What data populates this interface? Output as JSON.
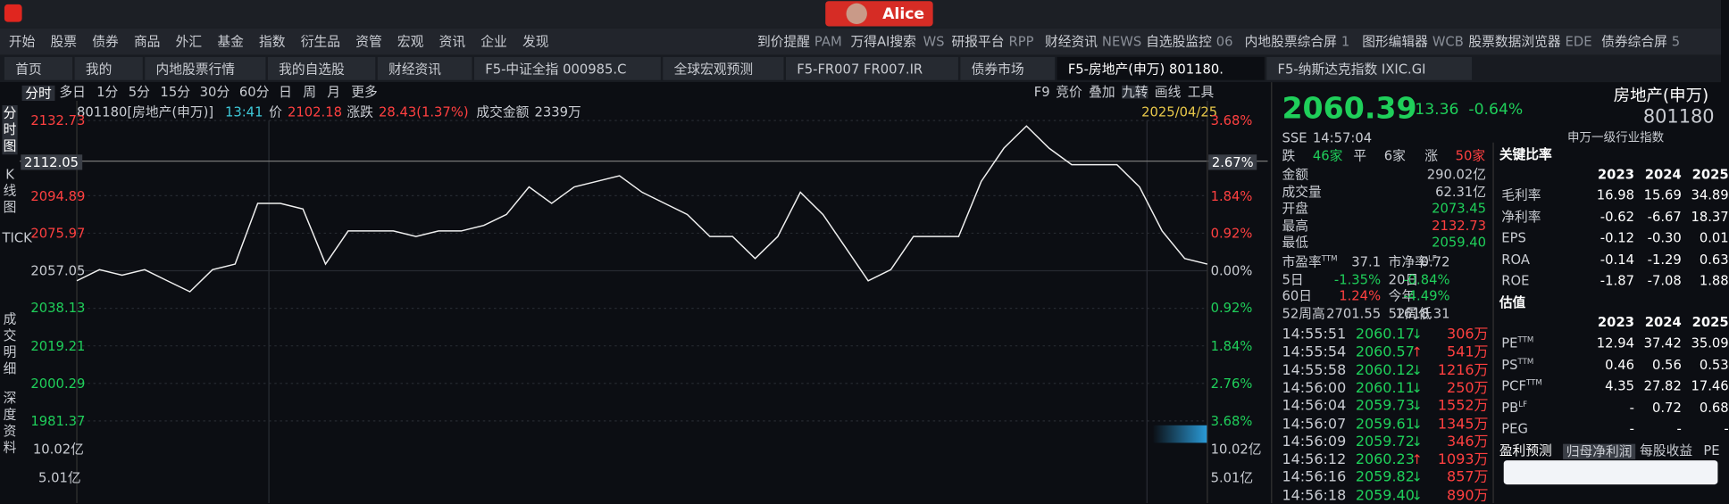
{
  "app": {
    "user": "Alice"
  },
  "menu": [
    "开始",
    "股票",
    "债券",
    "商品",
    "外汇",
    "基金",
    "指数",
    "衍生品",
    "资管",
    "宏观",
    "资讯",
    "企业",
    "发现"
  ],
  "shortcuts": [
    {
      "label": "到价提醒",
      "code": "PAM"
    },
    {
      "label": "万得AI搜索",
      "code": "WS"
    },
    {
      "label": "研报平台",
      "code": "RPP"
    },
    {
      "label": "财经资讯",
      "code": "NEWS"
    },
    {
      "label": "自选股监控",
      "code": "06"
    },
    {
      "label": "内地股票综合屏",
      "code": "1"
    },
    {
      "label": "图形编辑器",
      "code": "WCB"
    },
    {
      "label": "股票数据浏览器",
      "code": "EDE"
    },
    {
      "label": "债券综合屏",
      "code": "5"
    }
  ],
  "tabs": [
    "首页",
    "我的",
    "内地股票行情",
    "我的自选股",
    "财经资讯",
    "F5-中证全指 000985.C",
    "全球宏观预测",
    "F5-FR007 FR007.IR",
    "债券市场",
    "F5-房地产(申万) 801180.",
    "F5-纳斯达克指数 IXIC.GI"
  ],
  "chart": {
    "side_tabs": [
      "分时图",
      "K线图",
      "TICK",
      "成交明细",
      "深度资料"
    ],
    "periods": [
      "分时",
      "多日",
      "1分",
      "5分",
      "15分",
      "30分",
      "60分",
      "日",
      "周",
      "月",
      "更多"
    ],
    "tools": [
      "F9",
      "竞价",
      "叠加",
      "九转",
      "画线",
      "工具"
    ],
    "info": {
      "security": "801180[房地产(申万)]",
      "time": "13:41",
      "price_label": "价",
      "price": "2102.18",
      "change_label": "涨跌",
      "change": "28.43(1.37%)",
      "amount_label": "成交金额",
      "amount": "2339万",
      "date": "2025/04/25"
    },
    "y_labels": [
      2132.73,
      2094.89,
      2075.97,
      2057.05,
      2038.13,
      2019.21,
      2000.29,
      1981.37
    ],
    "pct_labels": [
      "3.68%",
      "1.84%",
      "0.92%",
      "0.00%",
      "0.92%",
      "1.84%",
      "2.76%",
      "3.68%"
    ],
    "crosshair": {
      "price": "2112.05",
      "pct": "2.67%"
    },
    "vol_labels": [
      "10.02亿",
      "5.01亿"
    ],
    "price_line": [
      2052.0,
      2057.6,
      2054.8,
      2057.6,
      2052.0,
      2046.5,
      2057.6,
      2060.4,
      2091.0,
      2091.0,
      2088.2,
      2060.4,
      2077.1,
      2077.1,
      2077.1,
      2074.3,
      2077.1,
      2077.1,
      2079.9,
      2085.4,
      2099.3,
      2091.0,
      2099.3,
      2102.1,
      2104.9,
      2096.6,
      2091.0,
      2085.4,
      2074.3,
      2074.3,
      2063.2,
      2074.3,
      2096.6,
      2085.4,
      2068.7,
      2052.0,
      2057.6,
      2074.3,
      2074.3,
      2074.3,
      2102.1,
      2118.8,
      2130.0,
      2118.8,
      2110.5,
      2110.5,
      2110.5,
      2099.3,
      2077.1,
      2063.2,
      2060.4
    ]
  },
  "quote": {
    "last": "2060.39",
    "change": "-13.36",
    "change_pct": "-0.64%",
    "name": "房地产(申万)",
    "code": "801180",
    "exchange": "SSE",
    "time": "14:57:04",
    "index_type": "申万一级行业指数",
    "breadth": [
      {
        "label": "跌",
        "value": "46家"
      },
      {
        "label": "平",
        "value": "6家"
      },
      {
        "label": "涨",
        "value": "50家"
      }
    ],
    "stats": [
      {
        "label": "金额",
        "value": "290.02亿"
      },
      {
        "label": "成交量",
        "value": "62.31亿"
      },
      {
        "label": "开盘",
        "value": "2073.45"
      },
      {
        "label": "最高",
        "value": "2132.73"
      },
      {
        "label": "最低",
        "value": "2059.40"
      }
    ],
    "pairs": [
      [
        {
          "label": "市盈率",
          "sup": "TTM",
          "value": "37.1"
        },
        {
          "label": "市净率",
          "sup": "LF",
          "value": "0.72"
        }
      ],
      [
        {
          "label": "5日",
          "value": "-1.35%"
        },
        {
          "label": "20日",
          "value": "-0.84%"
        }
      ],
      [
        {
          "label": "60日",
          "value": "1.24%"
        },
        {
          "label": "今年",
          "value": "-4.49%"
        }
      ],
      [
        {
          "label": "52周高",
          "value": "2701.55"
        },
        {
          "label": "52周低",
          "value": "1618.31"
        }
      ]
    ],
    "ticks": [
      {
        "time": "14:55:51",
        "price": "2060.17",
        "dir": "down",
        "vol": "306万"
      },
      {
        "time": "14:55:54",
        "price": "2060.57",
        "dir": "up",
        "vol": "541万"
      },
      {
        "time": "14:55:58",
        "price": "2060.12",
        "dir": "down",
        "vol": "1216万"
      },
      {
        "time": "14:56:00",
        "price": "2060.11",
        "dir": "down",
        "vol": "250万"
      },
      {
        "time": "14:56:04",
        "price": "2059.73",
        "dir": "down",
        "vol": "1552万"
      },
      {
        "time": "14:56:07",
        "price": "2059.61",
        "dir": "down",
        "vol": "1345万"
      },
      {
        "time": "14:56:09",
        "price": "2059.72",
        "dir": "down",
        "vol": "346万"
      },
      {
        "time": "14:56:12",
        "price": "2060.23",
        "dir": "up",
        "vol": "1093万"
      },
      {
        "time": "14:56:16",
        "price": "2059.82",
        "dir": "down",
        "vol": "857万"
      },
      {
        "time": "14:56:18",
        "price": "2059.40",
        "dir": "down",
        "vol": "890万"
      }
    ]
  },
  "key_ratios": {
    "title": "关键比率",
    "years": [
      "2023",
      "2024",
      "2025"
    ],
    "rows": [
      {
        "label": "毛利率",
        "values": [
          "16.98",
          "15.69",
          "34.89"
        ]
      },
      {
        "label": "净利率",
        "values": [
          "-0.62",
          "-6.67",
          "18.37"
        ]
      },
      {
        "label": "EPS",
        "values": [
          "-0.12",
          "-0.30",
          "0.01"
        ]
      },
      {
        "label": "ROA",
        "values": [
          "-0.14",
          "-1.29",
          "0.63"
        ]
      },
      {
        "label": "ROE",
        "values": [
          "-1.87",
          "-7.08",
          "1.88"
        ]
      }
    ]
  },
  "valuation": {
    "title": "估值",
    "years": [
      "2023",
      "2024",
      "2025"
    ],
    "rows": [
      {
        "label": "PE",
        "sup": "TTM",
        "values": [
          "12.94",
          "37.42",
          "35.09"
        ]
      },
      {
        "label": "PS",
        "sup": "TTM",
        "values": [
          "0.46",
          "0.56",
          "0.53"
        ]
      },
      {
        "label": "PCF",
        "sup": "TTM",
        "values": [
          "4.35",
          "27.82",
          "17.46"
        ]
      },
      {
        "label": "PB",
        "sup": "LF",
        "values": [
          "-",
          "0.72",
          "0.68"
        ]
      },
      {
        "label": "PEG",
        "values": [
          "-",
          "-",
          "-"
        ]
      }
    ]
  },
  "forecast": {
    "tabs": [
      "盈利预测",
      "归母净利润",
      "每股收益",
      "PE"
    ]
  }
}
